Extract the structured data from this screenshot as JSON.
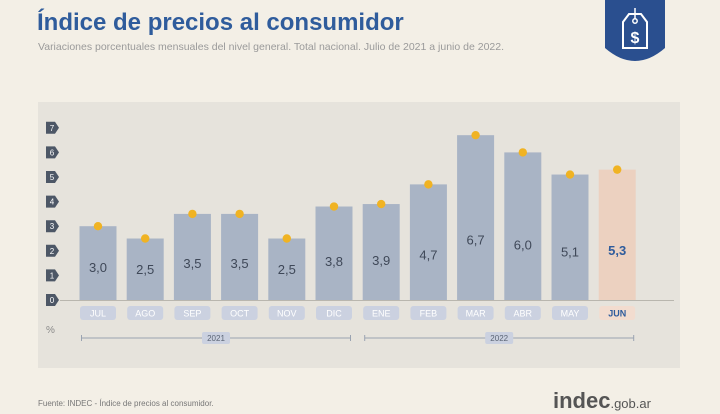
{
  "header": {
    "title": "Índice de precios al consumidor",
    "subtitle": "Variaciones porcentuales mensuales del nivel general. Total nacional. Julio de 2021 a junio de 2022."
  },
  "badge": {
    "icon": "price-tag-icon",
    "color": "#2a4f8f"
  },
  "footer": {
    "source": "Fuente: INDEC - Índice de precios al consumidor.",
    "logo_main": "indec",
    "logo_domain": ".gob.ar"
  },
  "colors": {
    "bar": "#a9b4c5",
    "bar_highlight": "#ecd1c0",
    "dot": "#f0b323",
    "label_box": "#cbd1e0",
    "label_box_highlight": "#f2dccf"
  },
  "chart_data": {
    "type": "bar",
    "categories": [
      "JUL",
      "AGO",
      "SEP",
      "OCT",
      "NOV",
      "DIC",
      "ENE",
      "FEB",
      "MAR",
      "ABR",
      "MAY",
      "JUN"
    ],
    "values": [
      3.0,
      2.5,
      3.5,
      3.5,
      2.5,
      3.8,
      3.9,
      4.7,
      6.7,
      6.0,
      5.1,
      5.3
    ],
    "value_labels": [
      "3,0",
      "2,5",
      "3,5",
      "3,5",
      "2,5",
      "3,8",
      "3,9",
      "4,7",
      "6,7",
      "6,0",
      "5,1",
      "5,3"
    ],
    "highlight_index": 11,
    "ylabel": "%",
    "ylim": [
      0,
      7
    ],
    "yticks": [
      "0",
      "1",
      "2",
      "3",
      "4",
      "5",
      "6",
      "7"
    ],
    "years": [
      {
        "label": "2021",
        "from": 0,
        "to": 5
      },
      {
        "label": "2022",
        "from": 6,
        "to": 11
      }
    ],
    "grid": false
  }
}
